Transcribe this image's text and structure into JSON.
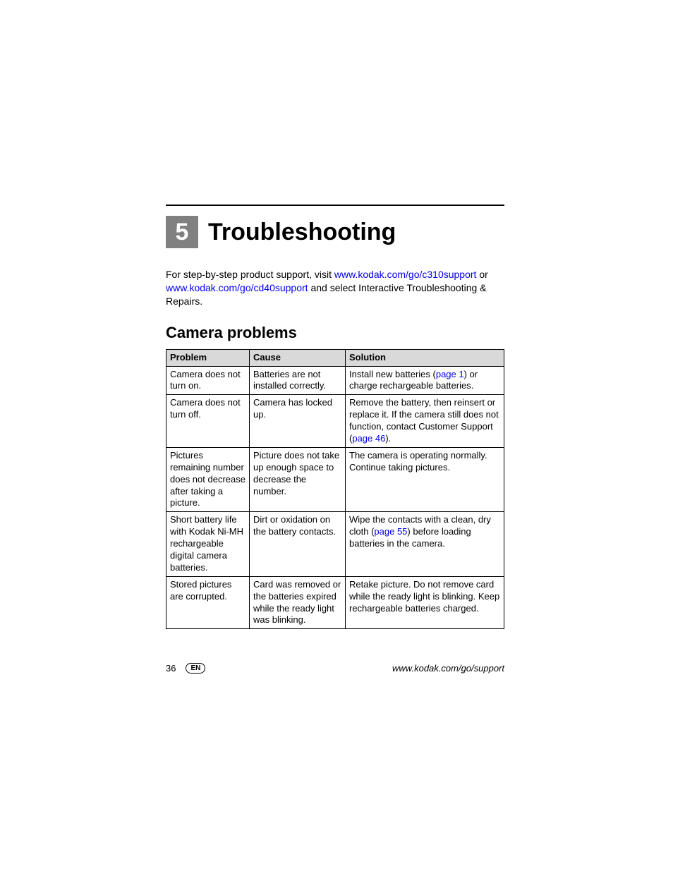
{
  "chapter": {
    "number": "5",
    "title": "Troubleshooting"
  },
  "intro": {
    "before": "For step-by-step product support, visit ",
    "link1": "www.kodak.com/go/c310support",
    "between": " or ",
    "link2": "www.kodak.com/go/cd40support",
    "after": " and select Interactive Troubleshooting & Repairs."
  },
  "section_title": "Camera problems",
  "table": {
    "headers": {
      "problem": "Problem",
      "cause": "Cause",
      "solution": "Solution"
    },
    "rows": [
      {
        "problem": "Camera does not turn on.",
        "cause": "Batteries are not installed correctly.",
        "solution": {
          "pre": "Install new batteries (",
          "link": "page 1",
          "post": ") or charge rechargeable batteries."
        }
      },
      {
        "problem": "Camera does not turn off.",
        "cause": "Camera has locked up.",
        "solution": {
          "pre": "Remove the battery, then reinsert or replace it. If the camera still does not function, contact Customer Support (",
          "link": "page 46",
          "post": ")."
        }
      },
      {
        "problem": "Pictures remaining number does not decrease after taking a picture.",
        "cause": "Picture does not take up enough space to decrease the number.",
        "solution": {
          "pre": "The camera is operating normally. Continue taking pictures.",
          "link": "",
          "post": ""
        }
      },
      {
        "problem": "Short battery life with Kodak Ni-MH rechargeable digital camera batteries.",
        "cause": "Dirt or oxidation on the battery contacts.",
        "solution": {
          "pre": "Wipe the contacts with a clean, dry cloth (",
          "link": "page 55",
          "post": ") before loading batteries in the camera."
        }
      },
      {
        "problem": "Stored pictures are corrupted.",
        "cause": "Card was removed or the batteries expired while the ready light was blinking.",
        "solution": {
          "pre": "Retake picture. Do not remove card while the ready light is blinking. Keep rechargeable batteries charged.",
          "link": "",
          "post": ""
        }
      }
    ]
  },
  "footer": {
    "page_number": "36",
    "lang": "EN",
    "url": "www.kodak.com/go/support"
  }
}
